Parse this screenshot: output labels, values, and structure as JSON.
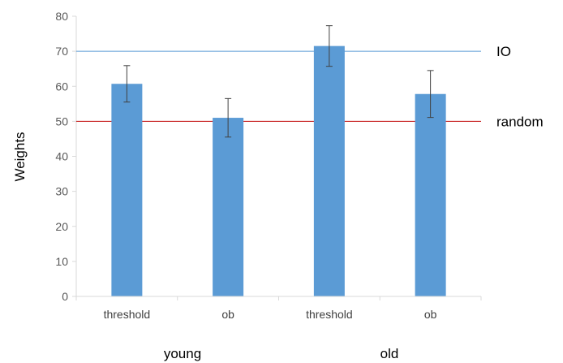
{
  "chart_data": {
    "type": "bar",
    "title": "",
    "xlabel": "",
    "ylabel": "Weights",
    "ylim": [
      0,
      80
    ],
    "yticks": [
      0,
      10,
      20,
      30,
      40,
      50,
      60,
      70,
      80
    ],
    "categories": [
      "threshold",
      "ob",
      "threshold",
      "ob"
    ],
    "groups": [
      {
        "label": "young",
        "categories": [
          0,
          1
        ]
      },
      {
        "label": "old",
        "categories": [
          2,
          3
        ]
      }
    ],
    "values": [
      60.7,
      51.0,
      71.5,
      57.8
    ],
    "errors": [
      5.2,
      5.5,
      5.8,
      6.7
    ],
    "reference_lines": [
      {
        "label": "IO",
        "value": 70,
        "color": "#5b9bd5"
      },
      {
        "label": "random",
        "value": 50,
        "color": "#c00000"
      }
    ],
    "bar_color": "#5b9bd5",
    "error_bar_color": "#404040",
    "grid": false,
    "legend": "none"
  }
}
